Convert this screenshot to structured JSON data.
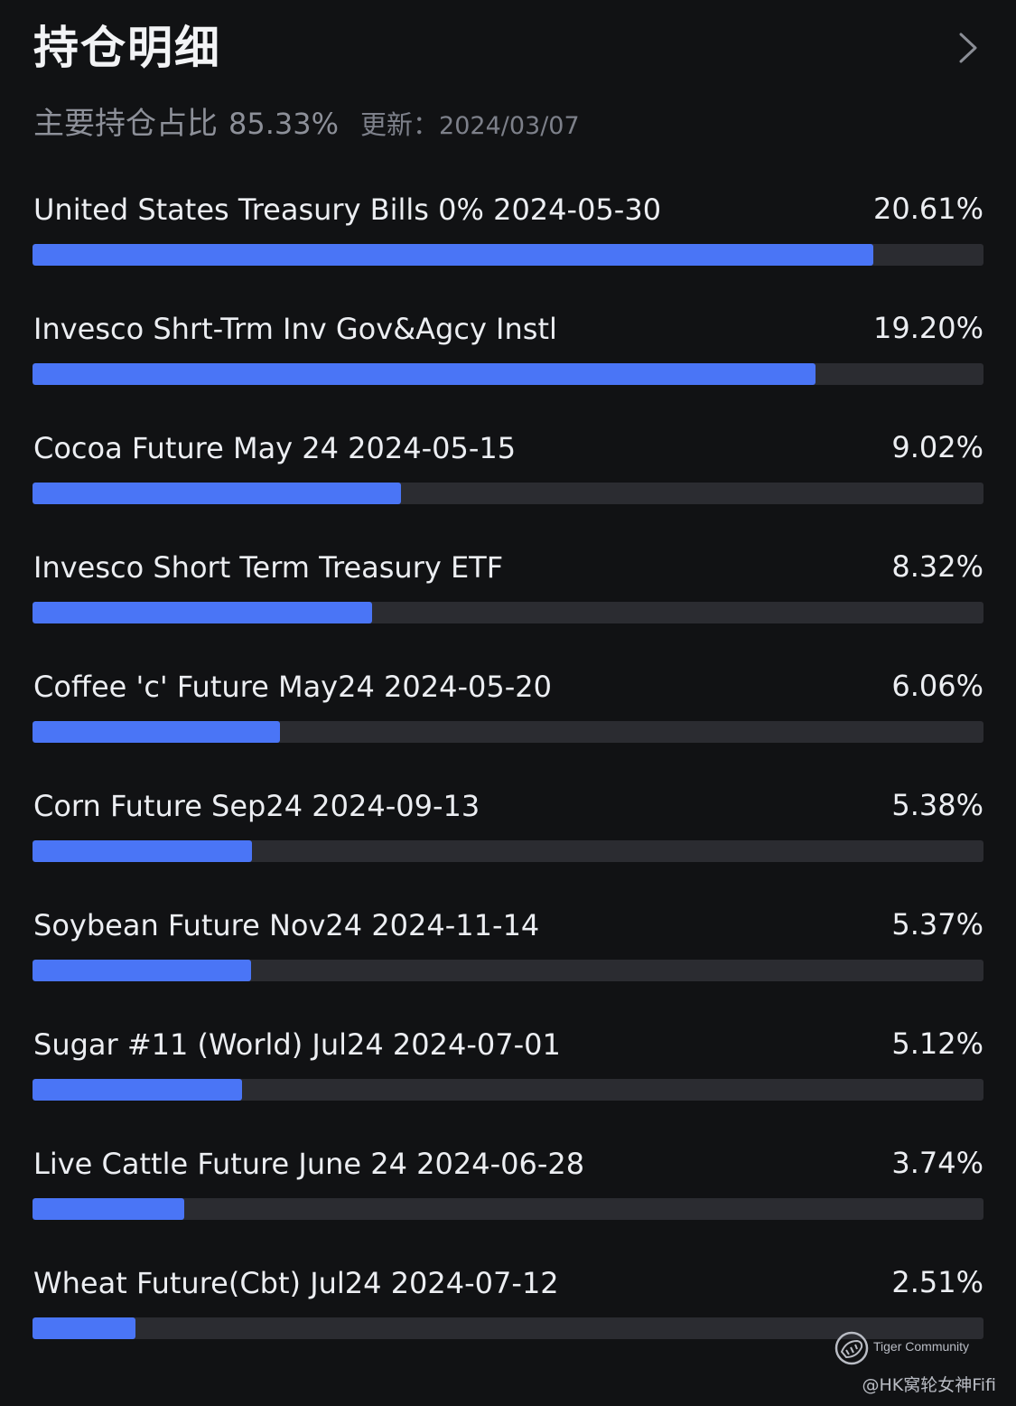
{
  "header": {
    "title": "持仓明细"
  },
  "summary": {
    "label": "主要持仓占比",
    "value": "85.33%",
    "updated_label": "更新：",
    "updated_date": "2024/03/07"
  },
  "holdings": [
    {
      "name": "United States Treasury Bills 0% 2024-05-30",
      "pct_label": "20.61%",
      "bar_fraction": 0.884
    },
    {
      "name": "Invesco Shrt-Trm Inv Gov&Agcy Instl",
      "pct_label": "19.20%",
      "bar_fraction": 0.823
    },
    {
      "name": "Cocoa Future May 24 2024-05-15",
      "pct_label": "9.02%",
      "bar_fraction": 0.387
    },
    {
      "name": "Invesco Short Term Treasury ETF",
      "pct_label": "8.32%",
      "bar_fraction": 0.357
    },
    {
      "name": "Coffee 'c' Future May24 2024-05-20",
      "pct_label": "6.06%",
      "bar_fraction": 0.26
    },
    {
      "name": "Corn Future Sep24 2024-09-13",
      "pct_label": "5.38%",
      "bar_fraction": 0.231
    },
    {
      "name": "Soybean Future Nov24 2024-11-14",
      "pct_label": "5.37%",
      "bar_fraction": 0.23
    },
    {
      "name": "Sugar #11 (World) Jul24 2024-07-01",
      "pct_label": "5.12%",
      "bar_fraction": 0.22
    },
    {
      "name": "Live Cattle Future June 24 2024-06-28",
      "pct_label": "3.74%",
      "bar_fraction": 0.16
    },
    {
      "name": "Wheat Future(Cbt) Jul24 2024-07-12",
      "pct_label": "2.51%",
      "bar_fraction": 0.108
    }
  ],
  "watermark": {
    "brand": "Tiger Community",
    "user": "@HK窝轮女神Fifi"
  },
  "colors": {
    "background": "#111214",
    "bar_fill": "#4a75f6",
    "bar_track": "#2b2c31"
  },
  "icons": {
    "header_action": "chevron-right-icon",
    "watermark_logo": "tiger-logo-icon"
  }
}
